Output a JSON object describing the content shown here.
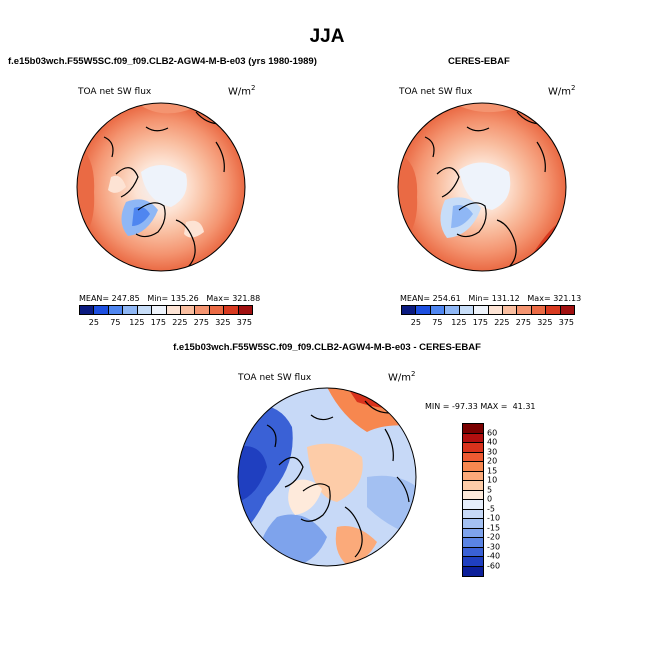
{
  "chart_data": [
    {
      "type": "heatmap",
      "projection": "polar stereographic (north pole)",
      "title": "TOA net SW flux",
      "units": "W/m",
      "units_exp": "2",
      "subtitle": "f.e15b03wch.F55W5SC.f09_f09.CLB2-AGW4-M-B-e03 (yrs 1980-1989)",
      "stats": {
        "mean_label": "MEAN=",
        "mean": "247.85",
        "min_label": "Min=",
        "min": "135.26",
        "max_label": "Max=",
        "max": "321.88"
      },
      "colorbar_levels": [
        "25",
        "75",
        "125",
        "175",
        "225",
        "275",
        "325",
        "375"
      ],
      "colorbar_colors": [
        "#0a1a80",
        "#1d4fe0",
        "#4f86f0",
        "#8fb7f5",
        "#c7ddf8",
        "#eef3fb",
        "#fde3d4",
        "#f9bea0",
        "#f49470",
        "#ea6a44",
        "#d83a20",
        "#a01010"
      ]
    },
    {
      "type": "heatmap",
      "projection": "polar stereographic (north pole)",
      "title": "TOA net SW flux",
      "units": "W/m",
      "units_exp": "2",
      "subtitle": "CERES-EBAF",
      "stats": {
        "mean_label": "MEAN=",
        "mean": "254.61",
        "min_label": "Min=",
        "min": "131.12",
        "max_label": "Max=",
        "max": "321.13"
      },
      "colorbar_levels": [
        "25",
        "75",
        "125",
        "175",
        "225",
        "275",
        "325",
        "375"
      ],
      "colorbar_colors": [
        "#0a1a80",
        "#1d4fe0",
        "#4f86f0",
        "#8fb7f5",
        "#c7ddf8",
        "#eef3fb",
        "#fde3d4",
        "#f9bea0",
        "#f49470",
        "#ea6a44",
        "#d83a20",
        "#a01010"
      ]
    },
    {
      "type": "heatmap",
      "projection": "polar stereographic (north pole)",
      "title": "TOA net SW flux",
      "units": "W/m",
      "units_exp": "2",
      "subtitle": "f.e15b03wch.F55W5SC.f09_f09.CLB2-AGW4-M-B-e03 - CERES-EBAF",
      "stats": {
        "min_label": "MIN =",
        "min": "-97.33",
        "max_label": "MAX =",
        "max": "41.31"
      },
      "colorbar_levels": [
        "60",
        "40",
        "30",
        "20",
        "15",
        "10",
        "5",
        "0",
        "-5",
        "-10",
        "-15",
        "-20",
        "-30",
        "-40",
        "-60"
      ],
      "colorbar_colors": [
        "#7a0000",
        "#b10f0f",
        "#d8321c",
        "#ee5a32",
        "#f7874f",
        "#fbaa7a",
        "#fdcca8",
        "#feeadb",
        "#e6eefb",
        "#c7d9f7",
        "#a3c0f2",
        "#7ea3ec",
        "#5a84e4",
        "#3a61d6",
        "#1f3fc0",
        "#0c1f9a"
      ]
    }
  ],
  "page": {
    "season": "JJA"
  }
}
